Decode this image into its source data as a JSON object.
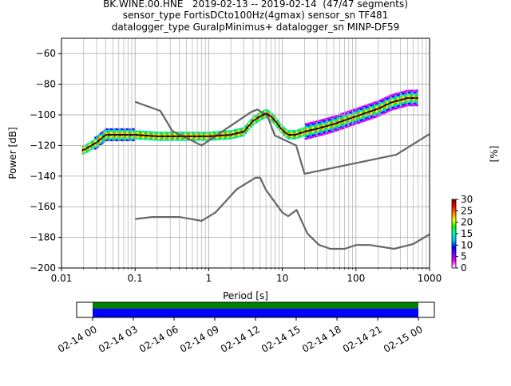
{
  "title_lines": [
    "BK.WINE.00.HNE   2019-02-13 -- 2019-02-14  (47/47 segments)",
    "sensor_type FortisDCto100Hz(4gmax) sensor_sn TF481",
    "datalogger_type GuralpMinimus+ datalogger_sn MINP-DF59"
  ],
  "chart_data": {
    "type": "heatmap",
    "xlabel": "Period [s]",
    "ylabel": "Power [dB]",
    "xscale": "log",
    "xlim": [
      0.01,
      1000
    ],
    "ylim": [
      -200,
      -50
    ],
    "x_ticks": [
      0.01,
      0.1,
      1,
      10,
      100,
      1000
    ],
    "x_tick_labels": [
      "0.01",
      "0.1",
      "1",
      "10",
      "100",
      "1000"
    ],
    "y_ticks": [
      -60,
      -80,
      -100,
      -120,
      -140,
      -160,
      -180,
      -200
    ],
    "y_tick_labels": [
      "−60",
      "−80",
      "−100",
      "−120",
      "−140",
      "−160",
      "−180",
      "−200"
    ],
    "grid": true,
    "colorbar": {
      "label": "[%]",
      "range": [
        0,
        30
      ],
      "ticks": [
        0,
        5,
        10,
        15,
        20,
        25,
        30
      ],
      "tick_labels": [
        "0",
        "5",
        "10",
        "15",
        "20",
        "25",
        "30"
      ],
      "colormap": "pqlx"
    },
    "mode_line": {
      "x": [
        0.02,
        0.03,
        0.04,
        0.06,
        0.1,
        0.2,
        0.5,
        1,
        2,
        3,
        4,
        5,
        6,
        7,
        8,
        10,
        12,
        15,
        20,
        30,
        50,
        100,
        200,
        300,
        500,
        700
      ],
      "y": [
        -123,
        -118,
        -113,
        -113,
        -113,
        -114,
        -114,
        -114,
        -113,
        -111,
        -104,
        -101,
        -99,
        -101,
        -104,
        -110,
        -113,
        -113,
        -111,
        -109,
        -106,
        -101,
        -96,
        -92,
        -89,
        -89
      ]
    },
    "nhnm": {
      "x": [
        0.1,
        0.22,
        0.32,
        0.8,
        3.8,
        4.6,
        6.3,
        7.9,
        15.4,
        20,
        354.8,
        1000
      ],
      "y": [
        -91.5,
        -97.4,
        -110.5,
        -120,
        -98,
        -96.5,
        -101,
        -113.5,
        -120,
        -138.5,
        -126,
        -112.5
      ]
    },
    "nlnm": {
      "x": [
        0.1,
        0.17,
        0.4,
        0.8,
        1.24,
        2.4,
        4.3,
        5,
        6,
        10,
        12,
        15.6,
        21.9,
        31.6,
        45,
        70,
        101,
        154,
        328,
        600,
        1000
      ],
      "y": [
        -168,
        -166.7,
        -166.7,
        -169.2,
        -163.7,
        -148.6,
        -141.1,
        -141.1,
        -149,
        -163.8,
        -166.2,
        -162.1,
        -177.5,
        -185,
        -187.5,
        -187.5,
        -185,
        -185,
        -187.5,
        -184.4,
        -178
      ]
    },
    "coverage": {
      "time_ticks": [
        "02-14 00",
        "02-14 03",
        "02-14 06",
        "02-14 09",
        "02-14 12",
        "02-14 15",
        "02-14 18",
        "02-14 21",
        "02-15 00"
      ],
      "colors": {
        "data": "#0000ff",
        "used": "#008000"
      }
    }
  }
}
